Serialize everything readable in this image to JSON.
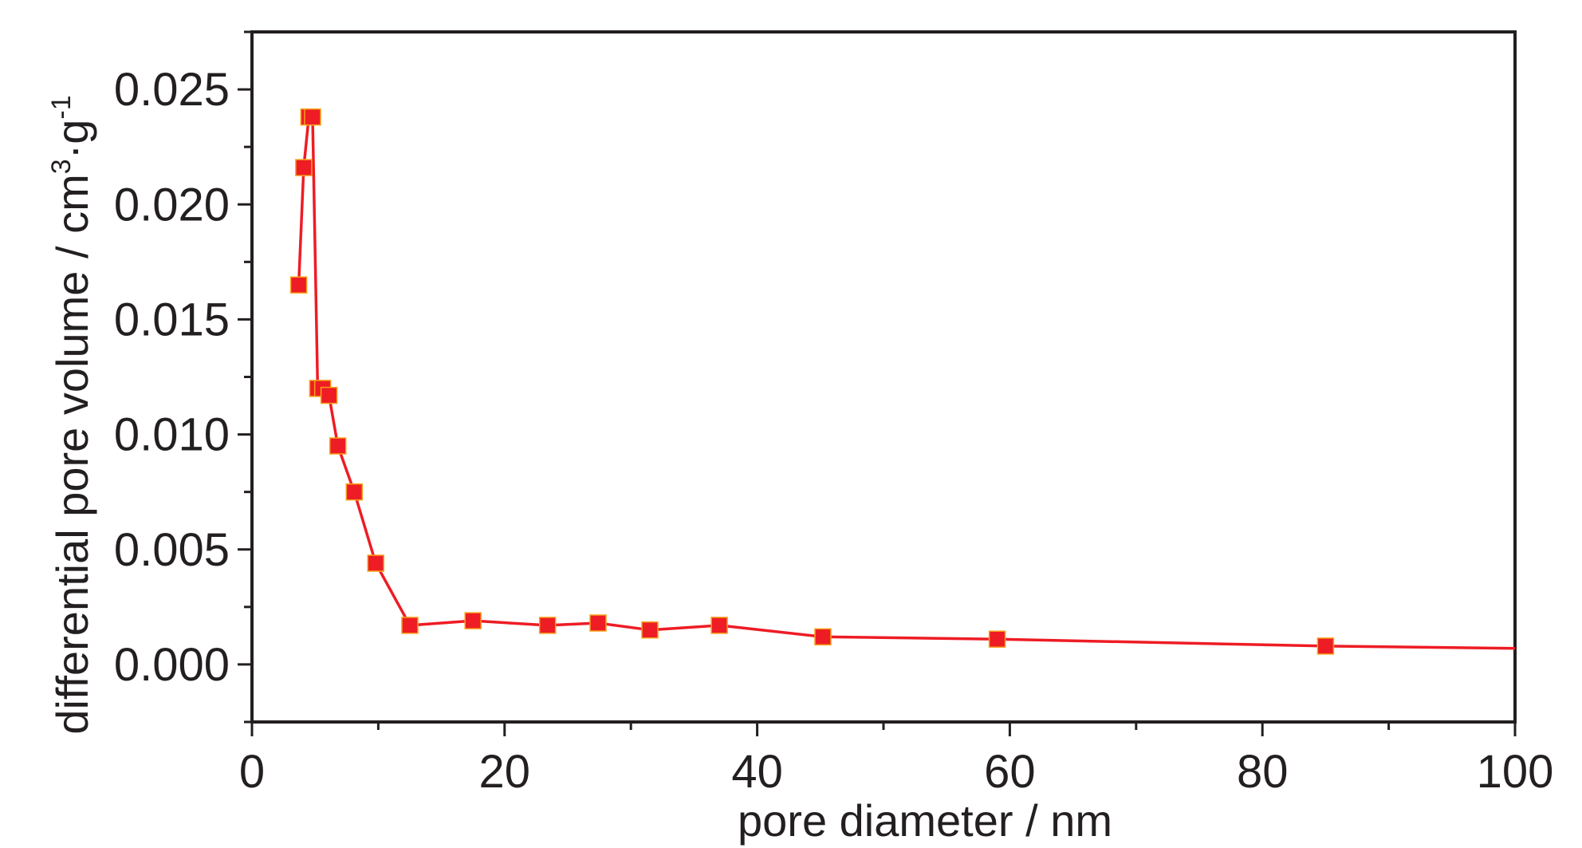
{
  "chart_data": {
    "type": "scatter",
    "xlabel": "pore diameter / nm",
    "ylabel": {
      "base": "differential pore volume / cm",
      "sup1": "3",
      "mid": "·g",
      "sup2": "-1"
    },
    "xlim": [
      0,
      100
    ],
    "ylim": [
      -0.0025,
      0.0275
    ],
    "x_ticks": [
      0,
      20,
      40,
      60,
      80,
      100
    ],
    "x_tick_labels": [
      "0",
      "20",
      "40",
      "60",
      "80",
      "100"
    ],
    "y_ticks": [
      0.0,
      0.005,
      0.01,
      0.015,
      0.02,
      0.025
    ],
    "y_tick_labels": [
      "0.000",
      "0.005",
      "0.010",
      "0.015",
      "0.020",
      "0.025"
    ],
    "grid": false,
    "series": [
      {
        "marker": "square",
        "color": "#ee1c24",
        "x": [
          3.7,
          4.1,
          4.5,
          4.8,
          5.2,
          5.6,
          6.1,
          6.8,
          8.1,
          9.8,
          12.5,
          17.5,
          23.4,
          27.4,
          31.5,
          37.0,
          45.2,
          59.0,
          85.0,
          100.0
        ],
        "y": [
          0.0165,
          0.0216,
          0.0238,
          0.0238,
          0.012,
          0.012,
          0.0117,
          0.0095,
          0.0075,
          0.0044,
          0.0017,
          0.0019,
          0.0017,
          0.0018,
          0.0015,
          0.0017,
          0.0012,
          0.0011,
          0.0008,
          0.0007
        ],
        "marker_shown": [
          true,
          true,
          true,
          true,
          true,
          true,
          true,
          true,
          true,
          true,
          true,
          true,
          true,
          true,
          true,
          true,
          true,
          true,
          true,
          false
        ]
      }
    ]
  }
}
